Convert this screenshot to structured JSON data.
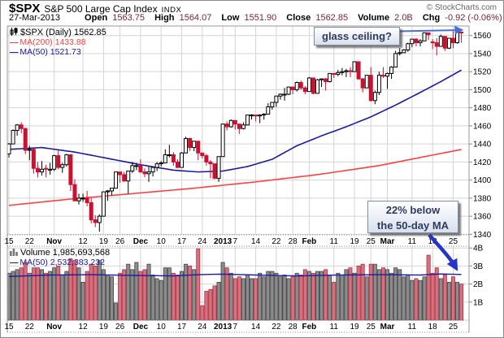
{
  "header": {
    "symbol": "$SPX",
    "name": "S&P 500 Large Cap Index",
    "exchange": "INDX",
    "credit": "© StockCharts.com",
    "quote": {
      "date": "27-Mar-2013",
      "open_l": "Open",
      "open": "1563.75",
      "high_l": "High",
      "high": "1564.07",
      "low_l": "Low",
      "low": "1551.90",
      "close_l": "Close",
      "close": "1562.85",
      "vol_l": "Volume",
      "vol": "2.0B",
      "chg_l": "Chg",
      "chg": "-0.92 (-0.06%)",
      "dropdown": "▼"
    }
  },
  "main_legend": {
    "title": "$SPX (Daily) 1562.85",
    "ma200": "MA(200) 1433.88",
    "ma50": "MA(50) 1521.73",
    "dash": "—"
  },
  "volume_legend": {
    "title": "Volume 1,985,693,568",
    "ma50": "MA(50) 2,532,383,232",
    "dash": "—"
  },
  "annotations": {
    "glass_ceiling": "glass ceiling?",
    "below_ma_line1": "22% below",
    "below_ma_line2": "the 50-day MA"
  },
  "colors": {
    "up_fill": "#ffffff",
    "up_stroke": "#000000",
    "down": "#cc1030",
    "ma200": "#ff4040",
    "ma50": "#1a1aa6",
    "vol_up_fill": "#8c8c8c",
    "vol_up_stroke": "#454545",
    "vol_down_fill": "#d4737f",
    "vol_down_stroke": "#b03045",
    "vol_ma": "#1a1aa6",
    "arrow_thin": "#4a6fd4",
    "arrow_thick": "#2633cc",
    "grid": "#d4d4d4",
    "border": "#999999",
    "value_text": "#7d2433",
    "axis_text": "#000000"
  },
  "chart_data": {
    "type": "candlestick+volume",
    "title": "$SPX Daily, 15-Oct-2012 to 27-Mar-2013",
    "price_axis": {
      "ticks": [
        1340,
        1360,
        1380,
        1400,
        1420,
        1440,
        1460,
        1480,
        1500,
        1520,
        1540,
        1560
      ],
      "range": [
        1339,
        1569
      ]
    },
    "volume_axis": {
      "ticks": [
        1,
        2,
        3,
        4
      ],
      "unit": "B",
      "range": [
        0,
        4.1
      ]
    },
    "x_labels": [
      {
        "i": 0,
        "t": "15"
      },
      {
        "i": 5,
        "t": "22"
      },
      {
        "i": 11,
        "t": "Nov",
        "b": 1
      },
      {
        "i": 18,
        "t": "12"
      },
      {
        "i": 23,
        "t": "19"
      },
      {
        "i": 27,
        "t": "26"
      },
      {
        "i": 32,
        "t": "Dec",
        "b": 1
      },
      {
        "i": 37,
        "t": "10"
      },
      {
        "i": 42,
        "t": "17"
      },
      {
        "i": 47,
        "t": "24"
      },
      {
        "i": 52,
        "t": "2013",
        "b": 1
      },
      {
        "i": 55,
        "t": "7"
      },
      {
        "i": 60,
        "t": "14"
      },
      {
        "i": 65,
        "t": "22"
      },
      {
        "i": 69,
        "t": "28"
      },
      {
        "i": 73,
        "t": "Feb",
        "b": 1
      },
      {
        "i": 79,
        "t": "11"
      },
      {
        "i": 84,
        "t": "19"
      },
      {
        "i": 88,
        "t": "25"
      },
      {
        "i": 92,
        "t": "Mar",
        "b": 1
      },
      {
        "i": 98,
        "t": "11"
      },
      {
        "i": 103,
        "t": "18"
      },
      {
        "i": 108,
        "t": "25"
      }
    ],
    "candles_format": [
      "open",
      "high",
      "low",
      "close",
      "volume_billtill"
    ],
    "candles": [
      [
        1429,
        1441,
        1425,
        1440,
        2.6
      ],
      [
        1440,
        1456,
        1440,
        1455,
        2.7
      ],
      [
        1455,
        1462,
        1449,
        1461,
        2.8
      ],
      [
        1461,
        1464,
        1452,
        1457,
        2.9
      ],
      [
        1457,
        1458,
        1429,
        1433,
        3.2
      ],
      [
        1433,
        1438,
        1422,
        1434,
        2.6
      ],
      [
        1434,
        1435,
        1407,
        1413,
        2.9
      ],
      [
        1413,
        1420,
        1403,
        1409,
        2.9
      ],
      [
        1409,
        1421,
        1405,
        1412,
        2.8
      ],
      [
        1413,
        1417,
        1403,
        1412,
        2.6
      ],
      [
        1411,
        1419,
        1406,
        1412,
        2.7
      ],
      [
        1412,
        1428,
        1410,
        1427,
        2.9
      ],
      [
        1427,
        1433,
        1412,
        1414,
        3.0
      ],
      [
        1414,
        1419,
        1408,
        1417,
        2.5
      ],
      [
        1417,
        1429,
        1415,
        1428,
        2.7
      ],
      [
        1428,
        1428,
        1388,
        1395,
        3.4
      ],
      [
        1395,
        1401,
        1377,
        1377,
        3.3
      ],
      [
        1377,
        1385,
        1373,
        1380,
        2.9
      ],
      [
        1380,
        1385,
        1376,
        1380,
        2.1
      ],
      [
        1380,
        1388,
        1371,
        1375,
        2.7
      ],
      [
        1375,
        1380,
        1352,
        1356,
        3.1
      ],
      [
        1356,
        1361,
        1348,
        1353,
        3.0
      ],
      [
        1353,
        1362,
        1343,
        1360,
        3.3
      ],
      [
        1360,
        1387,
        1360,
        1387,
        2.8
      ],
      [
        1387,
        1389,
        1377,
        1388,
        2.5
      ],
      [
        1388,
        1391,
        1383,
        1391,
        2.4
      ],
      [
        1391,
        1409,
        1391,
        1409,
        0.95
      ],
      [
        1409,
        1409,
        1397,
        1406,
        2.6
      ],
      [
        1406,
        1409,
        1398,
        1399,
        2.8
      ],
      [
        1399,
        1410,
        1385,
        1410,
        3.1
      ],
      [
        1410,
        1420,
        1408,
        1416,
        2.8
      ],
      [
        1416,
        1419,
        1411,
        1416,
        3.2
      ],
      [
        1416,
        1423,
        1408,
        1409,
        2.7
      ],
      [
        1409,
        1413,
        1403,
        1407,
        2.8
      ],
      [
        1407,
        1415,
        1398,
        1409,
        3.1
      ],
      [
        1409,
        1414,
        1404,
        1414,
        2.5
      ],
      [
        1414,
        1420,
        1410,
        1418,
        2.3
      ],
      [
        1418,
        1421,
        1415,
        1419,
        2.2
      ],
      [
        1419,
        1434,
        1419,
        1428,
        2.9
      ],
      [
        1428,
        1439,
        1425,
        1428,
        2.9
      ],
      [
        1428,
        1431,
        1416,
        1420,
        2.6
      ],
      [
        1420,
        1423,
        1413,
        1414,
        2.5
      ],
      [
        1414,
        1431,
        1414,
        1430,
        2.7
      ],
      [
        1430,
        1448,
        1430,
        1446,
        3.1
      ],
      [
        1446,
        1447,
        1432,
        1436,
        3.0
      ],
      [
        1436,
        1443,
        1432,
        1443,
        2.8
      ],
      [
        1443,
        1443,
        1422,
        1430,
        3.95
      ],
      [
        1430,
        1430,
        1424,
        1427,
        0.8
      ],
      [
        1427,
        1429,
        1416,
        1420,
        1.6
      ],
      [
        1420,
        1422,
        1402,
        1418,
        1.7
      ],
      [
        1418,
        1418,
        1401,
        1402,
        1.9
      ],
      [
        1402,
        1426,
        1398,
        1426,
        2.1
      ],
      [
        1426,
        1462,
        1426,
        1462,
        3.2
      ],
      [
        1462,
        1465,
        1455,
        1459,
        2.9
      ],
      [
        1459,
        1467,
        1458,
        1466,
        2.6
      ],
      [
        1466,
        1466,
        1456,
        1462,
        2.3
      ],
      [
        1462,
        1462,
        1451,
        1457,
        2.4
      ],
      [
        1457,
        1464,
        1456,
        1461,
        2.3
      ],
      [
        1461,
        1472,
        1461,
        1472,
        2.5
      ],
      [
        1472,
        1473,
        1467,
        1472,
        2.3
      ],
      [
        1472,
        1472,
        1465,
        1471,
        2.3
      ],
      [
        1471,
        1473,
        1463,
        1472,
        2.6
      ],
      [
        1472,
        1474,
        1467,
        1473,
        2.4
      ],
      [
        1473,
        1485,
        1473,
        1481,
        2.7
      ],
      [
        1481,
        1486,
        1478,
        1486,
        2.7
      ],
      [
        1486,
        1493,
        1481,
        1493,
        2.6
      ],
      [
        1493,
        1496,
        1489,
        1495,
        2.4
      ],
      [
        1495,
        1502,
        1488,
        1495,
        2.5
      ],
      [
        1495,
        1503,
        1494,
        1503,
        2.3
      ],
      [
        1503,
        1503,
        1495,
        1500,
        2.4
      ],
      [
        1500,
        1509,
        1498,
        1508,
        2.6
      ],
      [
        1508,
        1510,
        1500,
        1502,
        2.5
      ],
      [
        1502,
        1504,
        1495,
        1498,
        2.8
      ],
      [
        1498,
        1514,
        1498,
        1513,
        2.7
      ],
      [
        1513,
        1513,
        1495,
        1496,
        2.6
      ],
      [
        1496,
        1512,
        1496,
        1511,
        2.7
      ],
      [
        1511,
        1512,
        1503,
        1512,
        2.7
      ],
      [
        1512,
        1513,
        1499,
        1509,
        2.8
      ],
      [
        1509,
        1518,
        1508,
        1518,
        2.5
      ],
      [
        1518,
        1518,
        1513,
        1517,
        2.1
      ],
      [
        1517,
        1522,
        1515,
        1519,
        2.6
      ],
      [
        1519,
        1524,
        1516,
        1520,
        2.5
      ],
      [
        1520,
        1523,
        1514,
        1521,
        2.8
      ],
      [
        1521,
        1525,
        1514,
        1520,
        2.9
      ],
      [
        1520,
        1531,
        1520,
        1531,
        2.6
      ],
      [
        1531,
        1531,
        1511,
        1512,
        3.0
      ],
      [
        1512,
        1513,
        1497,
        1502,
        3.1
      ],
      [
        1502,
        1516,
        1502,
        1516,
        2.4
      ],
      [
        1516,
        1525,
        1487,
        1488,
        3.1
      ],
      [
        1488,
        1499,
        1484,
        1497,
        3.1
      ],
      [
        1497,
        1520,
        1494,
        1516,
        2.8
      ],
      [
        1516,
        1525,
        1513,
        1515,
        2.9
      ],
      [
        1515,
        1519,
        1501,
        1518,
        2.8
      ],
      [
        1518,
        1526,
        1512,
        1525,
        2.6
      ],
      [
        1525,
        1543,
        1525,
        1540,
        2.9
      ],
      [
        1540,
        1546,
        1538,
        1541,
        2.8
      ],
      [
        1541,
        1545,
        1541,
        1544,
        2.4
      ],
      [
        1544,
        1552,
        1542,
        1551,
        2.5
      ],
      [
        1551,
        1556,
        1547,
        1556,
        2.2
      ],
      [
        1556,
        1557,
        1548,
        1552,
        2.3
      ],
      [
        1552,
        1556,
        1548,
        1554,
        2.2
      ],
      [
        1554,
        1563,
        1554,
        1563,
        2.4
      ],
      [
        1563,
        1563,
        1555,
        1561,
        3.6
      ],
      [
        1553,
        1556,
        1545,
        1552,
        2.6
      ],
      [
        1552,
        1557,
        1538,
        1548,
        2.9
      ],
      [
        1548,
        1561,
        1548,
        1559,
        2.3
      ],
      [
        1559,
        1559,
        1543,
        1546,
        2.5
      ],
      [
        1546,
        1557,
        1545,
        1557,
        2.1
      ],
      [
        1557,
        1565,
        1546,
        1552,
        2.4
      ],
      [
        1552,
        1564,
        1551,
        1564,
        2.1
      ],
      [
        1563.75,
        1564.07,
        1551.9,
        1562.85,
        2.0
      ]
    ],
    "ma200_points": [
      [
        0,
        1372
      ],
      [
        15,
        1379
      ],
      [
        30,
        1385
      ],
      [
        45,
        1391
      ],
      [
        60,
        1398
      ],
      [
        75,
        1406
      ],
      [
        90,
        1416
      ],
      [
        100,
        1425
      ],
      [
        110,
        1433.88
      ]
    ],
    "ma50_points": [
      [
        0,
        1434
      ],
      [
        8,
        1436
      ],
      [
        16,
        1431
      ],
      [
        24,
        1424
      ],
      [
        32,
        1417
      ],
      [
        40,
        1411
      ],
      [
        46,
        1409
      ],
      [
        52,
        1410
      ],
      [
        58,
        1415
      ],
      [
        64,
        1423
      ],
      [
        70,
        1438
      ],
      [
        76,
        1449
      ],
      [
        82,
        1459
      ],
      [
        88,
        1470
      ],
      [
        94,
        1483
      ],
      [
        100,
        1497
      ],
      [
        105,
        1509
      ],
      [
        110,
        1521.73
      ]
    ],
    "vol_ma50_points": [
      [
        0,
        2.42
      ],
      [
        10,
        2.5
      ],
      [
        20,
        2.52
      ],
      [
        30,
        2.48
      ],
      [
        40,
        2.45
      ],
      [
        46,
        2.52
      ],
      [
        52,
        2.55
      ],
      [
        60,
        2.5
      ],
      [
        70,
        2.45
      ],
      [
        80,
        2.5
      ],
      [
        90,
        2.52
      ],
      [
        100,
        2.5
      ],
      [
        105,
        2.56
      ],
      [
        110,
        2.53
      ]
    ],
    "legend_position": "top-left",
    "grid": true
  }
}
